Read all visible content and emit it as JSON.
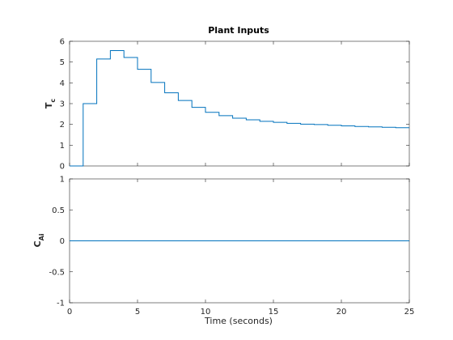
{
  "chart_data": [
    {
      "type": "line",
      "step": true,
      "title": "Plant Inputs",
      "ylabel": {
        "main": "T",
        "sub": "c"
      },
      "xlabel": "",
      "xlim": [
        0,
        25
      ],
      "ylim": [
        0,
        6
      ],
      "xticks": [
        0,
        5,
        10,
        15,
        20,
        25
      ],
      "yticks": [
        0,
        1,
        2,
        3,
        4,
        5,
        6
      ],
      "xtick_labels_visible": false,
      "grid": false,
      "color": "#0072BD",
      "series": [
        {
          "x": [
            0,
            1,
            2,
            3,
            4,
            5,
            6,
            7,
            8,
            9,
            10,
            11,
            12,
            13,
            14,
            15,
            16,
            17,
            18,
            19,
            20,
            21,
            22,
            23,
            24,
            25
          ],
          "y": [
            0,
            3.0,
            5.15,
            5.55,
            5.22,
            4.65,
            4.02,
            3.52,
            3.15,
            2.82,
            2.58,
            2.42,
            2.3,
            2.22,
            2.15,
            2.1,
            2.05,
            2.01,
            1.99,
            1.96,
            1.93,
            1.9,
            1.88,
            1.86,
            1.84,
            1.84
          ]
        }
      ]
    },
    {
      "type": "line",
      "step": true,
      "title": "",
      "ylabel": {
        "main": "C",
        "sub": "Ai"
      },
      "xlabel": "Time (seconds)",
      "xlim": [
        0,
        25
      ],
      "ylim": [
        -1,
        1
      ],
      "xticks": [
        0,
        5,
        10,
        15,
        20,
        25
      ],
      "yticks": [
        -1,
        -0.5,
        0,
        0.5,
        1
      ],
      "xtick_labels_visible": true,
      "grid": false,
      "color": "#0072BD",
      "series": [
        {
          "x": [
            0,
            25
          ],
          "y": [
            0,
            0
          ]
        }
      ]
    }
  ]
}
